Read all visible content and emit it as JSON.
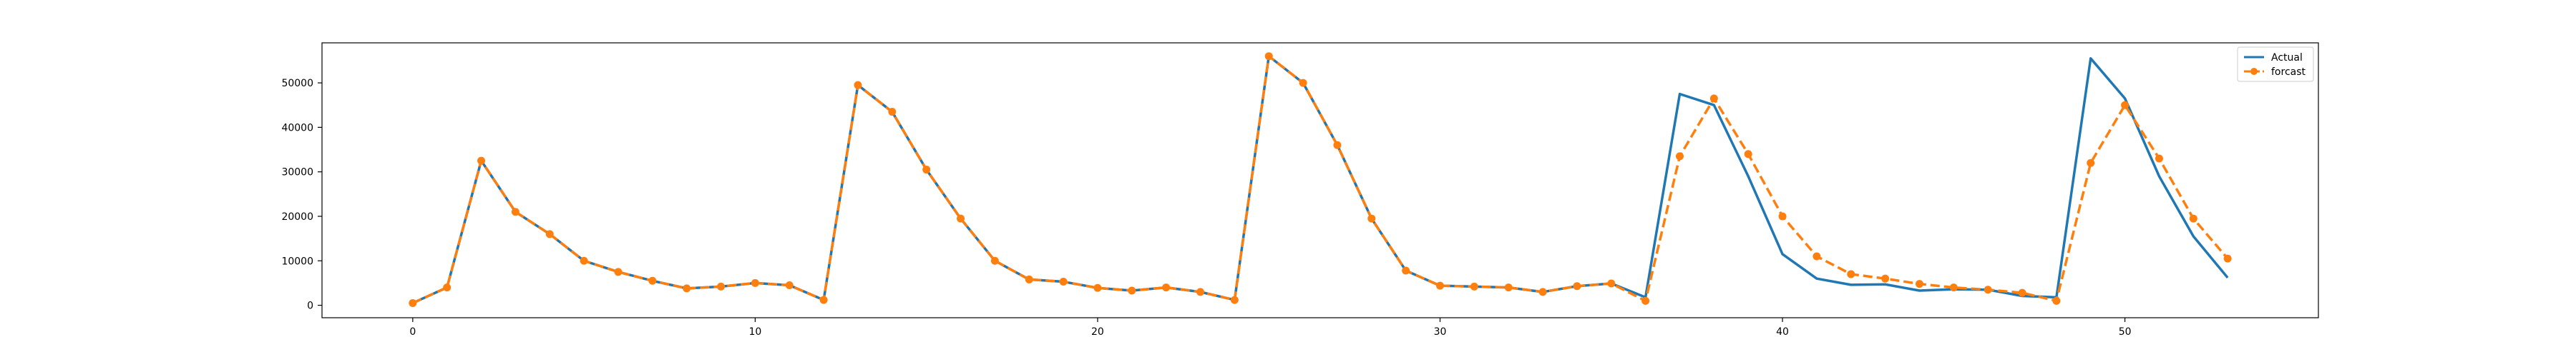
{
  "chart_data": {
    "type": "line",
    "title": "",
    "xlabel": "",
    "ylabel": "",
    "xlim": [
      -2.65,
      55.65
    ],
    "ylim": [
      -2800,
      59000
    ],
    "x_ticks": [
      0,
      10,
      20,
      30,
      40,
      50
    ],
    "y_ticks": [
      0,
      10000,
      20000,
      30000,
      40000,
      50000
    ],
    "grid": false,
    "legend": {
      "placement": "top-right",
      "entries": [
        "Actual",
        "forcast"
      ]
    },
    "series": [
      {
        "name": "Actual",
        "color": "#1f77b4",
        "style": "solid",
        "x": [
          0,
          1,
          2,
          3,
          4,
          5,
          6,
          7,
          8,
          9,
          10,
          11,
          12,
          13,
          14,
          15,
          16,
          17,
          18,
          19,
          20,
          21,
          22,
          23,
          24,
          25,
          26,
          27,
          28,
          29,
          30,
          31,
          32,
          33,
          34,
          35,
          36,
          37,
          38,
          39,
          40,
          41,
          42,
          43,
          44,
          45,
          46,
          47,
          48,
          49,
          50,
          51,
          52,
          53
        ],
        "values": [
          500,
          4000,
          32500,
          21000,
          16000,
          10000,
          7500,
          5500,
          3800,
          4200,
          5000,
          4500,
          1200,
          49500,
          43500,
          30500,
          19500,
          10000,
          5800,
          5300,
          3900,
          3300,
          4000,
          3000,
          1200,
          56000,
          50000,
          36000,
          19500,
          7800,
          4400,
          4200,
          4000,
          3000,
          4300,
          4900,
          1800,
          47500,
          45000,
          29000,
          11500,
          6000,
          4600,
          4700,
          3300,
          3600,
          3500,
          2100,
          1800,
          55500,
          46500,
          29000,
          15500,
          6200
        ]
      },
      {
        "name": "forcast",
        "color": "#ff7f0e",
        "style": "dashed",
        "x": [
          0,
          1,
          2,
          3,
          4,
          5,
          6,
          7,
          8,
          9,
          10,
          11,
          12,
          13,
          14,
          15,
          16,
          17,
          18,
          19,
          20,
          21,
          22,
          23,
          24,
          25,
          26,
          27,
          28,
          29,
          30,
          31,
          32,
          33,
          34,
          35,
          36,
          37,
          38,
          39,
          40,
          41,
          42,
          43,
          44,
          45,
          46,
          47,
          48,
          49,
          50,
          51,
          52,
          53
        ],
        "values": [
          500,
          4000,
          32500,
          21000,
          16000,
          10000,
          7500,
          5500,
          3800,
          4200,
          5000,
          4500,
          1200,
          49500,
          43500,
          30500,
          19500,
          10000,
          5800,
          5300,
          3900,
          3300,
          4000,
          3000,
          1200,
          56000,
          50000,
          36000,
          19500,
          7800,
          4400,
          4200,
          4000,
          3000,
          4300,
          4900,
          1000,
          33500,
          46500,
          34000,
          20000,
          11000,
          7000,
          6000,
          4800,
          4000,
          3500,
          2800,
          1000,
          32000,
          45000,
          33000,
          19500,
          10500
        ]
      }
    ]
  }
}
